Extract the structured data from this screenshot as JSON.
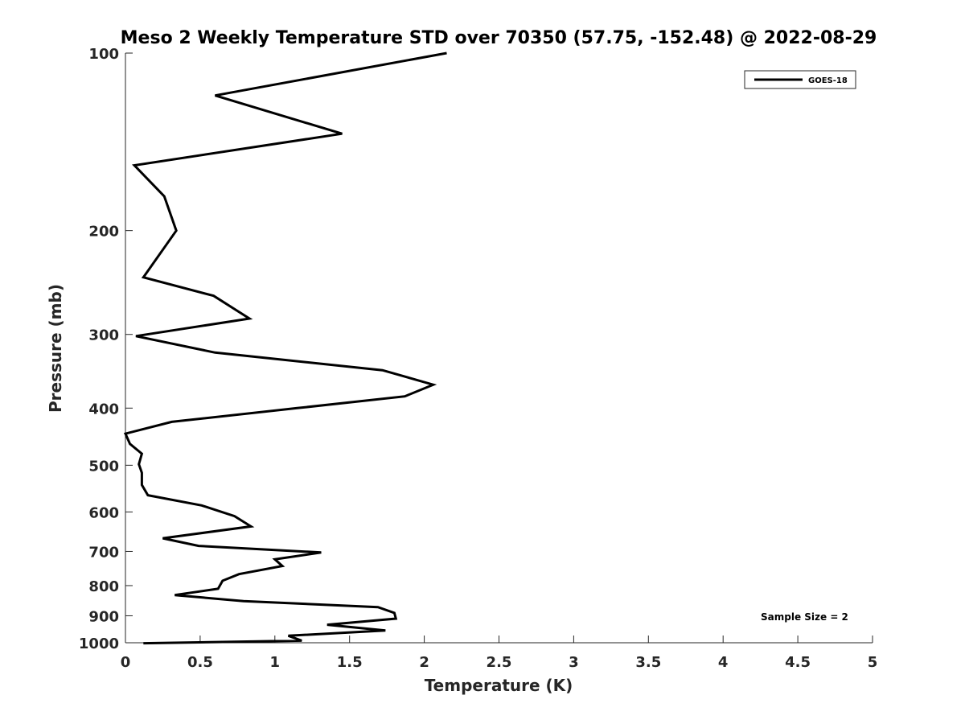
{
  "chart_data": {
    "type": "line",
    "title": "Meso 2 Weekly Temperature STD over 70350 (57.75, -152.48) @ 2022-08-29",
    "xlabel": "Temperature (K)",
    "ylabel": "Pressure (mb)",
    "xlim": [
      0,
      5
    ],
    "ylim": [
      100,
      1000
    ],
    "y_scale": "log",
    "y_reversed": true,
    "x_ticks": [
      0,
      0.5,
      1,
      1.5,
      2,
      2.5,
      3,
      3.5,
      4,
      4.5,
      5
    ],
    "x_tick_labels": [
      "0",
      "0.5",
      "1",
      "1.5",
      "2",
      "2.5",
      "3",
      "3.5",
      "4",
      "4.5",
      "5"
    ],
    "y_ticks": [
      100,
      200,
      300,
      400,
      500,
      600,
      700,
      800,
      900,
      1000
    ],
    "y_tick_labels": [
      "100",
      "200",
      "300",
      "400",
      "500",
      "600",
      "700",
      "800",
      "900",
      "1000"
    ],
    "grid": false,
    "legend": {
      "position": "top-right",
      "entries": [
        "GOES-18"
      ]
    },
    "annotation": "Sample Size = 2",
    "series": [
      {
        "name": "GOES-18",
        "color": "#000000",
        "x": [
          2.15,
          0.6,
          1.45,
          0.06,
          0.26,
          0.34,
          0.12,
          0.59,
          0.83,
          0.07,
          0.6,
          1.72,
          2.06,
          1.87,
          1.15,
          0.31,
          0.0,
          0.03,
          0.11,
          0.09,
          0.11,
          0.11,
          0.15,
          0.51,
          0.73,
          0.84,
          0.25,
          0.49,
          1.31,
          1.0,
          1.05,
          0.76,
          0.65,
          0.62,
          0.33,
          0.79,
          1.69,
          1.8,
          1.81,
          1.35,
          1.74,
          1.09,
          1.18,
          0.12
        ],
        "y": [
          100,
          118,
          137,
          155,
          175,
          200,
          240,
          258,
          282,
          302,
          322,
          345,
          365,
          382,
          400,
          422,
          442,
          460,
          478,
          498,
          515,
          540,
          562,
          585,
          610,
          635,
          665,
          685,
          703,
          722,
          741,
          765,
          785,
          810,
          830,
          850,
          870,
          890,
          910,
          932,
          953,
          973,
          992,
          1002
        ]
      }
    ]
  }
}
